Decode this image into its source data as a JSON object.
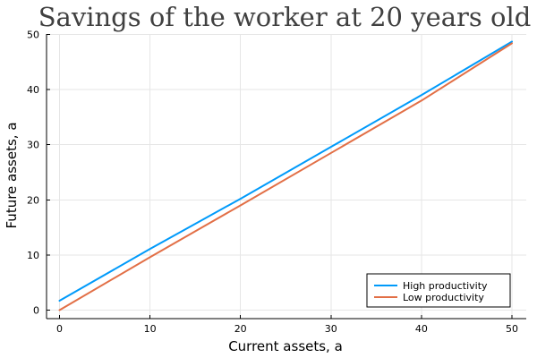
{
  "chart_data": {
    "type": "line",
    "title": "Savings of the worker at 20 years old",
    "xlabel": "Current assets, a",
    "ylabel": "Future assets, a",
    "xlim": [
      0,
      50
    ],
    "ylim": [
      0,
      50
    ],
    "xticks": [
      0,
      10,
      20,
      30,
      40,
      50
    ],
    "yticks": [
      0,
      10,
      20,
      30,
      40,
      50
    ],
    "grid": true,
    "legend_position": "bottom-right",
    "series": [
      {
        "name": "High productivity",
        "color": "#009AFA",
        "x": [
          0,
          10,
          20,
          30,
          40,
          50
        ],
        "values": [
          1.7,
          11.1,
          20.2,
          29.6,
          39.0,
          48.7
        ]
      },
      {
        "name": "Low productivity",
        "color": "#E26F46",
        "x": [
          0,
          10,
          20,
          30,
          40,
          50
        ],
        "values": [
          0.0,
          9.6,
          19.0,
          28.5,
          38.0,
          48.4
        ]
      }
    ]
  }
}
